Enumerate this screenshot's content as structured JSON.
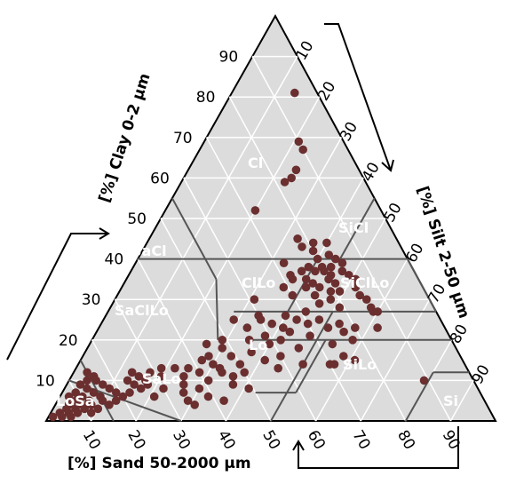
{
  "chart_data": {
    "type": "scatter",
    "subtype": "ternary soil texture triangle",
    "axes": {
      "clay": {
        "label": "[%] Clay 0-2 µm",
        "ticks": [
          "10",
          "20",
          "30",
          "40",
          "50",
          "60",
          "70",
          "80",
          "90"
        ]
      },
      "silt": {
        "label": "[%] Silt 2-50 µm",
        "ticks": [
          "10",
          "20",
          "30",
          "40",
          "50",
          "60",
          "70",
          "80",
          "90"
        ]
      },
      "sand": {
        "label": "[%] Sand 50-2000 µm",
        "ticks": [
          "90",
          "80",
          "70",
          "60",
          "50",
          "40",
          "30",
          "20",
          "10"
        ]
      }
    },
    "classes": [
      "Cl",
      "SiCl",
      "SaCl",
      "ClLo",
      "SiClLo",
      "SaClLo",
      "Lo",
      "SaLo",
      "SiLo",
      "Si",
      "LoSa"
    ],
    "colors": {
      "background": "#dcdcdc",
      "grid": "#ffffff",
      "boundary": "#555555",
      "point": "#6b2f2f",
      "class_label": "#ffffff"
    },
    "grid": true,
    "points_clay_silt": [
      [
        81,
        14
      ],
      [
        69,
        21
      ],
      [
        67,
        23
      ],
      [
        62,
        24
      ],
      [
        60,
        24
      ],
      [
        59,
        23
      ],
      [
        52,
        20
      ],
      [
        45,
        33
      ],
      [
        44,
        37
      ],
      [
        44,
        40
      ],
      [
        43,
        35
      ],
      [
        42,
        38
      ],
      [
        41,
        42
      ],
      [
        40,
        40
      ],
      [
        40,
        44
      ],
      [
        39,
        33
      ],
      [
        39,
        46
      ],
      [
        38,
        39
      ],
      [
        38,
        42
      ],
      [
        38,
        44
      ],
      [
        37,
        38
      ],
      [
        37,
        41
      ],
      [
        37,
        43
      ],
      [
        37,
        47
      ],
      [
        36,
        36
      ],
      [
        36,
        45
      ],
      [
        36,
        49
      ],
      [
        35,
        37
      ],
      [
        35,
        40
      ],
      [
        35,
        45
      ],
      [
        35,
        51
      ],
      [
        34,
        42
      ],
      [
        34,
        47
      ],
      [
        33,
        36
      ],
      [
        33,
        41
      ],
      [
        33,
        44
      ],
      [
        33,
        52
      ],
      [
        32,
        47
      ],
      [
        32,
        49
      ],
      [
        31,
        39
      ],
      [
        31,
        44
      ],
      [
        31,
        54
      ],
      [
        30,
        31
      ],
      [
        30,
        48
      ],
      [
        30,
        56
      ],
      [
        29,
        46
      ],
      [
        28,
        51
      ],
      [
        28,
        58
      ],
      [
        27,
        44
      ],
      [
        27,
        59
      ],
      [
        27,
        60
      ],
      [
        26,
        34
      ],
      [
        26,
        40
      ],
      [
        25,
        29
      ],
      [
        25,
        35
      ],
      [
        25,
        43
      ],
      [
        25,
        48
      ],
      [
        24,
        38
      ],
      [
        24,
        46
      ],
      [
        24,
        53
      ],
      [
        23,
        33
      ],
      [
        23,
        41
      ],
      [
        23,
        51
      ],
      [
        23,
        57
      ],
      [
        23,
        62
      ],
      [
        22,
        43
      ],
      [
        22,
        55
      ],
      [
        21,
        38
      ],
      [
        21,
        48
      ],
      [
        20,
        29
      ],
      [
        20,
        35
      ],
      [
        20,
        42
      ],
      [
        20,
        58
      ],
      [
        19,
        26
      ],
      [
        19,
        40
      ],
      [
        19,
        54
      ],
      [
        18,
        30
      ],
      [
        18,
        47
      ],
      [
        17,
        37
      ],
      [
        16,
        28
      ],
      [
        16,
        33
      ],
      [
        16,
        44
      ],
      [
        16,
        58
      ],
      [
        15,
        27
      ],
      [
        15,
        41
      ],
      [
        15,
        61
      ],
      [
        14,
        30
      ],
      [
        14,
        36
      ],
      [
        14,
        50
      ],
      [
        14,
        56
      ],
      [
        14,
        57
      ],
      [
        13,
        22
      ],
      [
        13,
        25
      ],
      [
        13,
        32
      ],
      [
        13,
        45
      ],
      [
        12,
        28
      ],
      [
        12,
        33
      ],
      [
        12,
        38
      ],
      [
        11,
        20
      ],
      [
        11,
        25
      ],
      [
        11,
        36
      ],
      [
        10,
        31
      ],
      [
        10,
        79
      ],
      [
        9,
        26
      ],
      [
        9,
        37
      ],
      [
        8,
        22
      ],
      [
        8,
        30
      ],
      [
        8,
        41
      ],
      [
        7,
        27
      ],
      [
        6,
        33
      ],
      [
        6,
        21
      ],
      [
        5,
        29
      ],
      [
        5,
        37
      ],
      [
        4,
        31
      ],
      [
        12,
        3
      ],
      [
        11,
        5
      ],
      [
        10,
        6
      ],
      [
        10,
        4
      ],
      [
        9,
        8
      ],
      [
        9,
        3
      ],
      [
        8,
        10
      ],
      [
        8,
        5
      ],
      [
        7,
        12
      ],
      [
        7,
        7
      ],
      [
        7,
        3
      ],
      [
        6,
        14
      ],
      [
        6,
        9
      ],
      [
        6,
        5
      ],
      [
        6,
        2
      ],
      [
        5,
        13
      ],
      [
        5,
        10
      ],
      [
        5,
        7
      ],
      [
        5,
        4
      ],
      [
        4,
        12
      ],
      [
        4,
        8
      ],
      [
        4,
        6
      ],
      [
        4,
        3
      ],
      [
        3,
        10
      ],
      [
        3,
        7
      ],
      [
        3,
        5
      ],
      [
        3,
        3
      ],
      [
        2,
        9
      ],
      [
        2,
        6
      ],
      [
        2,
        4
      ],
      [
        2,
        2
      ],
      [
        1,
        5
      ],
      [
        1,
        3
      ],
      [
        1,
        1
      ],
      [
        13,
        19
      ],
      [
        12,
        17
      ],
      [
        12,
        13
      ],
      [
        11,
        15
      ],
      [
        10,
        17
      ],
      [
        10,
        13
      ],
      [
        9,
        18
      ],
      [
        9,
        15
      ],
      [
        8,
        17
      ],
      [
        7,
        15
      ]
    ]
  }
}
